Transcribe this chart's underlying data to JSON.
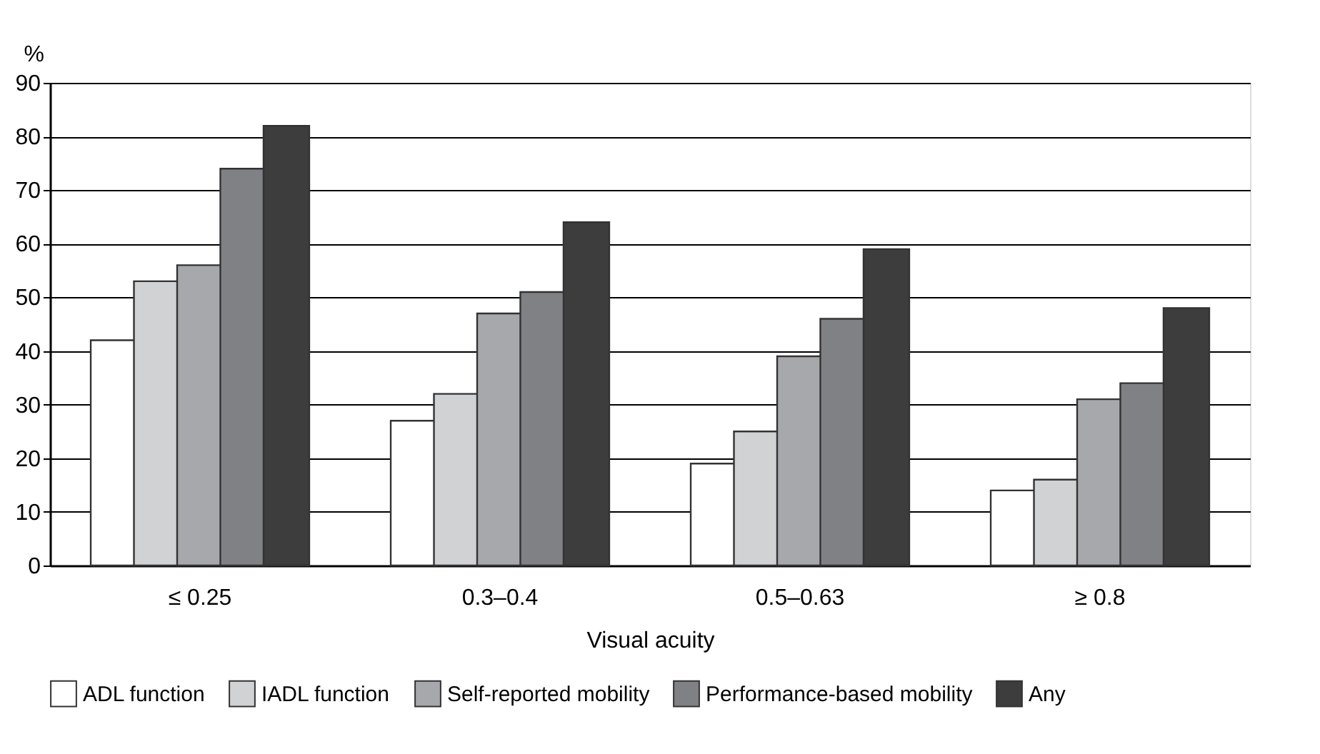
{
  "chart_data": {
    "type": "bar",
    "xlabel": "Visual acuity",
    "ylabel": "%",
    "categories": [
      "≤ 0.25",
      "0.3–0.4",
      "0.5–0.63",
      "≥ 0.8"
    ],
    "series": [
      {
        "name": "ADL function",
        "color": "#ffffff",
        "values": [
          42,
          27,
          19,
          14
        ]
      },
      {
        "name": "IADL function",
        "color": "#d1d2d4",
        "values": [
          53,
          32,
          25,
          16
        ]
      },
      {
        "name": "Self-reported mobility",
        "color": "#a7a8ab",
        "values": [
          56,
          47,
          39,
          31
        ]
      },
      {
        "name": "Performance-based mobility",
        "color": "#808184",
        "values": [
          74,
          51,
          46,
          34
        ]
      },
      {
        "name": "Any",
        "color": "#3d3d3d",
        "values": [
          82,
          64,
          59,
          48
        ]
      }
    ],
    "ylim": [
      0,
      90
    ],
    "yticks": [
      0,
      10,
      20,
      30,
      40,
      50,
      60,
      70,
      80,
      90
    ],
    "grid": "y",
    "legend": "bottom"
  }
}
